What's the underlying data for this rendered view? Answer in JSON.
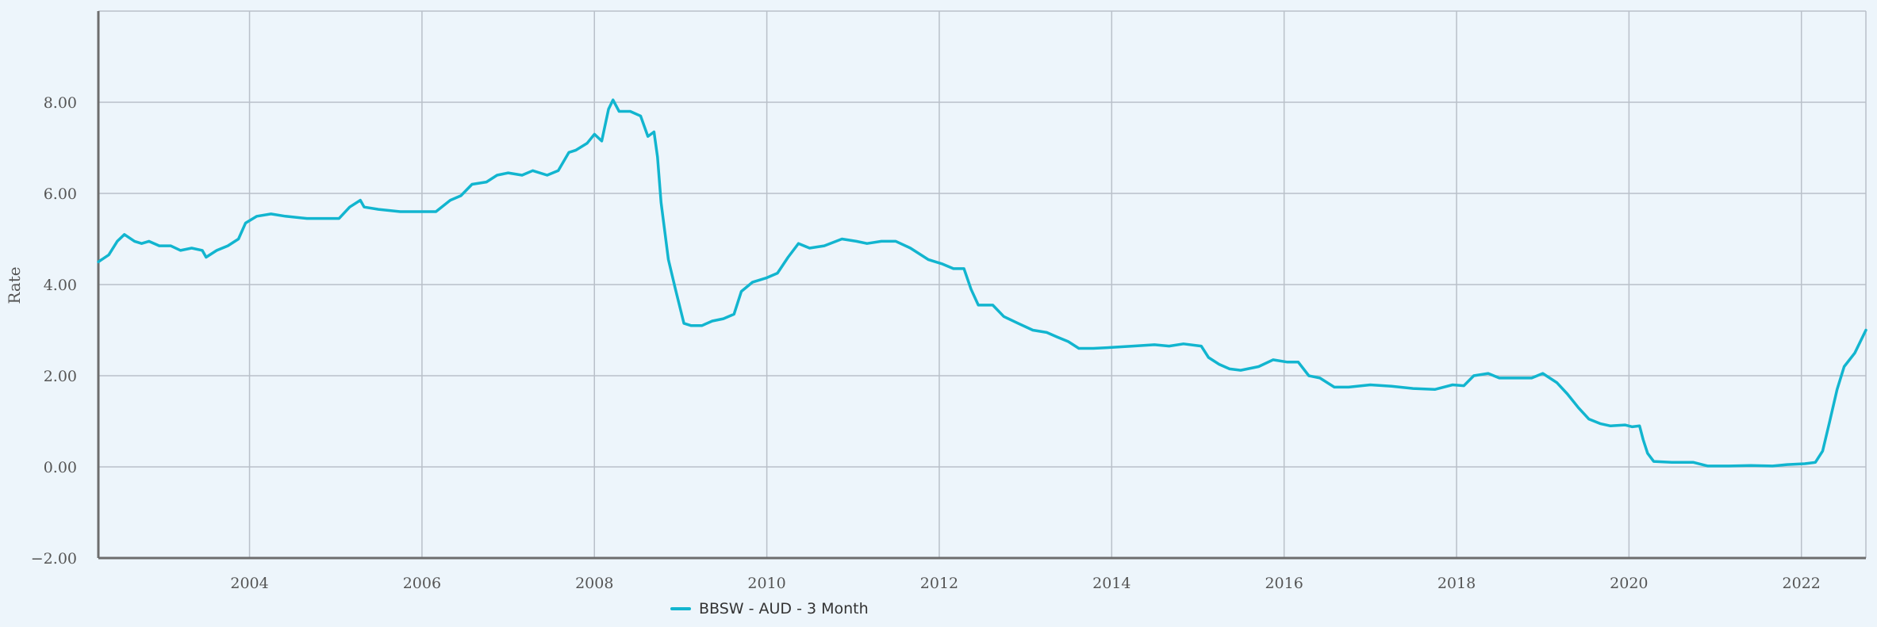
{
  "chart_data": {
    "type": "line",
    "title": "",
    "xlabel": "",
    "ylabel": "Rate",
    "ylim": [
      -2,
      10
    ],
    "xlim": [
      "2002-04-01",
      "2022-10-01"
    ],
    "yticks": [
      {
        "v": -2,
        "label": "-2.00"
      },
      {
        "v": 0,
        "label": "0.00"
      },
      {
        "v": 2,
        "label": "2.00"
      },
      {
        "v": 4,
        "label": "4.00"
      },
      {
        "v": 6,
        "label": "6.00"
      },
      {
        "v": 8,
        "label": "8.00"
      }
    ],
    "xticks": [
      "2004",
      "2006",
      "2008",
      "2010",
      "2012",
      "2014",
      "2016",
      "2018",
      "2020",
      "2022"
    ],
    "grid": true,
    "legend_position": "bottom",
    "series": [
      {
        "name": "BBSW - AUD - 3 Month",
        "color": "#12b5cf",
        "points": [
          [
            "2002-04-01",
            4.5
          ],
          [
            "2002-05-15",
            4.65
          ],
          [
            "2002-06-20",
            4.95
          ],
          [
            "2002-07-20",
            5.1
          ],
          [
            "2002-09-01",
            4.95
          ],
          [
            "2002-10-01",
            4.9
          ],
          [
            "2002-11-01",
            4.95
          ],
          [
            "2002-12-15",
            4.85
          ],
          [
            "2003-02-01",
            4.85
          ],
          [
            "2003-03-15",
            4.75
          ],
          [
            "2003-05-01",
            4.8
          ],
          [
            "2003-06-15",
            4.75
          ],
          [
            "2003-07-01",
            4.6
          ],
          [
            "2003-08-15",
            4.75
          ],
          [
            "2003-10-01",
            4.85
          ],
          [
            "2003-11-15",
            5.0
          ],
          [
            "2003-12-15",
            5.35
          ],
          [
            "2004-02-01",
            5.5
          ],
          [
            "2004-04-01",
            5.55
          ],
          [
            "2004-06-01",
            5.5
          ],
          [
            "2004-09-01",
            5.45
          ],
          [
            "2004-12-01",
            5.45
          ],
          [
            "2005-01-15",
            5.45
          ],
          [
            "2005-03-01",
            5.7
          ],
          [
            "2005-04-15",
            5.85
          ],
          [
            "2005-05-01",
            5.7
          ],
          [
            "2005-07-01",
            5.65
          ],
          [
            "2005-10-01",
            5.6
          ],
          [
            "2006-01-01",
            5.6
          ],
          [
            "2006-03-01",
            5.6
          ],
          [
            "2006-05-01",
            5.85
          ],
          [
            "2006-06-15",
            5.95
          ],
          [
            "2006-08-01",
            6.2
          ],
          [
            "2006-10-01",
            6.25
          ],
          [
            "2006-11-15",
            6.4
          ],
          [
            "2007-01-01",
            6.45
          ],
          [
            "2007-03-01",
            6.4
          ],
          [
            "2007-04-15",
            6.5
          ],
          [
            "2007-06-15",
            6.4
          ],
          [
            "2007-08-01",
            6.5
          ],
          [
            "2007-09-15",
            6.9
          ],
          [
            "2007-10-15",
            6.95
          ],
          [
            "2007-12-01",
            7.1
          ],
          [
            "2008-01-01",
            7.3
          ],
          [
            "2008-02-01",
            7.15
          ],
          [
            "2008-03-01",
            7.85
          ],
          [
            "2008-03-20",
            8.05
          ],
          [
            "2008-04-15",
            7.8
          ],
          [
            "2008-06-01",
            7.8
          ],
          [
            "2008-07-15",
            7.7
          ],
          [
            "2008-08-15",
            7.25
          ],
          [
            "2008-09-10",
            7.35
          ],
          [
            "2008-09-25",
            6.8
          ],
          [
            "2008-10-10",
            5.8
          ],
          [
            "2008-11-10",
            4.55
          ],
          [
            "2008-12-10",
            3.9
          ],
          [
            "2009-01-15",
            3.15
          ],
          [
            "2009-02-15",
            3.1
          ],
          [
            "2009-04-01",
            3.1
          ],
          [
            "2009-05-15",
            3.2
          ],
          [
            "2009-07-01",
            3.25
          ],
          [
            "2009-08-15",
            3.35
          ],
          [
            "2009-09-15",
            3.85
          ],
          [
            "2009-11-01",
            4.05
          ],
          [
            "2010-01-01",
            4.15
          ],
          [
            "2010-02-15",
            4.25
          ],
          [
            "2010-04-01",
            4.6
          ],
          [
            "2010-05-15",
            4.9
          ],
          [
            "2010-07-01",
            4.8
          ],
          [
            "2010-09-01",
            4.85
          ],
          [
            "2010-11-15",
            5.0
          ],
          [
            "2011-01-15",
            4.95
          ],
          [
            "2011-03-01",
            4.9
          ],
          [
            "2011-05-01",
            4.95
          ],
          [
            "2011-07-01",
            4.95
          ],
          [
            "2011-09-01",
            4.8
          ],
          [
            "2011-11-15",
            4.55
          ],
          [
            "2012-01-15",
            4.45
          ],
          [
            "2012-03-01",
            4.35
          ],
          [
            "2012-04-15",
            4.35
          ],
          [
            "2012-05-15",
            3.9
          ],
          [
            "2012-06-15",
            3.55
          ],
          [
            "2012-08-15",
            3.55
          ],
          [
            "2012-10-01",
            3.3
          ],
          [
            "2012-12-01",
            3.15
          ],
          [
            "2013-02-01",
            3.0
          ],
          [
            "2013-04-01",
            2.95
          ],
          [
            "2013-05-15",
            2.85
          ],
          [
            "2013-07-01",
            2.75
          ],
          [
            "2013-08-15",
            2.6
          ],
          [
            "2013-10-15",
            2.6
          ],
          [
            "2014-01-01",
            2.62
          ],
          [
            "2014-04-01",
            2.65
          ],
          [
            "2014-07-01",
            2.68
          ],
          [
            "2014-09-01",
            2.65
          ],
          [
            "2014-11-01",
            2.7
          ],
          [
            "2015-01-15",
            2.65
          ],
          [
            "2015-02-15",
            2.4
          ],
          [
            "2015-04-01",
            2.25
          ],
          [
            "2015-05-15",
            2.15
          ],
          [
            "2015-07-01",
            2.12
          ],
          [
            "2015-09-15",
            2.2
          ],
          [
            "2015-11-15",
            2.35
          ],
          [
            "2016-01-15",
            2.3
          ],
          [
            "2016-03-01",
            2.3
          ],
          [
            "2016-04-15",
            2.0
          ],
          [
            "2016-06-01",
            1.95
          ],
          [
            "2016-08-01",
            1.75
          ],
          [
            "2016-10-01",
            1.75
          ],
          [
            "2017-01-01",
            1.8
          ],
          [
            "2017-04-01",
            1.77
          ],
          [
            "2017-07-01",
            1.72
          ],
          [
            "2017-10-01",
            1.7
          ],
          [
            "2017-12-15",
            1.8
          ],
          [
            "2018-02-01",
            1.78
          ],
          [
            "2018-03-15",
            2.0
          ],
          [
            "2018-05-15",
            2.05
          ],
          [
            "2018-07-01",
            1.95
          ],
          [
            "2018-09-01",
            1.95
          ],
          [
            "2018-11-15",
            1.95
          ],
          [
            "2019-01-01",
            2.05
          ],
          [
            "2019-03-01",
            1.85
          ],
          [
            "2019-04-15",
            1.6
          ],
          [
            "2019-06-01",
            1.3
          ],
          [
            "2019-07-15",
            1.05
          ],
          [
            "2019-09-01",
            0.95
          ],
          [
            "2019-10-15",
            0.9
          ],
          [
            "2019-12-15",
            0.92
          ],
          [
            "2020-01-15",
            0.88
          ],
          [
            "2020-02-15",
            0.9
          ],
          [
            "2020-03-01",
            0.6
          ],
          [
            "2020-03-20",
            0.3
          ],
          [
            "2020-04-15",
            0.12
          ],
          [
            "2020-07-01",
            0.1
          ],
          [
            "2020-10-01",
            0.1
          ],
          [
            "2020-12-01",
            0.02
          ],
          [
            "2021-03-01",
            0.02
          ],
          [
            "2021-06-01",
            0.03
          ],
          [
            "2021-09-01",
            0.02
          ],
          [
            "2021-11-01",
            0.05
          ],
          [
            "2022-01-15",
            0.07
          ],
          [
            "2022-03-01",
            0.1
          ],
          [
            "2022-04-01",
            0.35
          ],
          [
            "2022-05-01",
            1.0
          ],
          [
            "2022-06-01",
            1.7
          ],
          [
            "2022-07-01",
            2.2
          ],
          [
            "2022-08-15",
            2.5
          ],
          [
            "2022-10-01",
            3.0
          ]
        ]
      }
    ]
  }
}
